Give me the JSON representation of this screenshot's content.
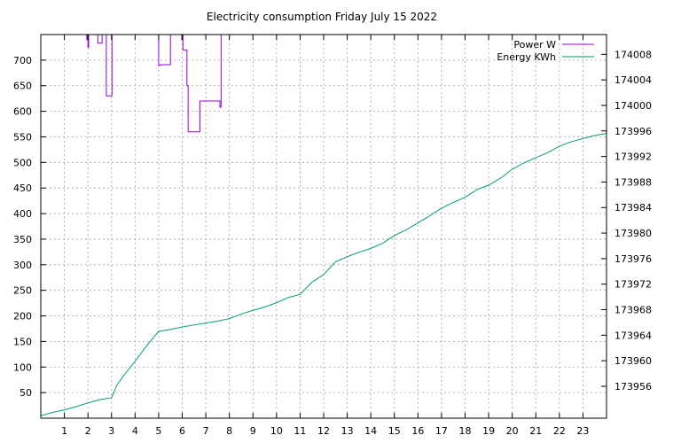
{
  "chart_data": {
    "type": "line",
    "title": "Electricity consumption Friday July 15 2022",
    "xlabel": "",
    "ylabel": "",
    "y2label": "",
    "grid": true,
    "legend_position": "top-right",
    "xlim": [
      0,
      24
    ],
    "ylim": [
      0,
      750
    ],
    "y2lim": [
      173951,
      174011.1
    ],
    "x_ticks": [
      1,
      2,
      3,
      4,
      5,
      6,
      7,
      8,
      9,
      10,
      11,
      12,
      13,
      14,
      15,
      16,
      17,
      18,
      19,
      20,
      21,
      22,
      23
    ],
    "y_ticks": [
      50,
      100,
      150,
      200,
      250,
      300,
      350,
      400,
      450,
      500,
      550,
      600,
      650,
      700
    ],
    "y2_ticks": [
      173956,
      173960,
      173964,
      173968,
      173972,
      173976,
      173980,
      173984,
      173988,
      173992,
      173996,
      174000,
      174004,
      174008
    ],
    "colors": {
      "power": "#9400d3",
      "energy": "#009e73"
    },
    "series": [
      {
        "name": "Power W",
        "axis": "y",
        "points": [
          [
            1.95,
            760
          ],
          [
            1.95,
            740
          ],
          [
            1.96,
            740
          ],
          [
            1.96,
            760
          ],
          [
            2.0,
            760
          ],
          [
            2.0,
            725
          ],
          [
            2.03,
            725
          ],
          [
            2.03,
            760
          ],
          [
            2.42,
            760
          ],
          [
            2.42,
            733
          ],
          [
            2.6,
            733
          ],
          [
            2.6,
            760
          ],
          [
            2.78,
            760
          ],
          [
            2.78,
            630
          ],
          [
            3.02,
            630
          ],
          [
            3.02,
            760
          ],
          [
            5.0,
            760
          ],
          [
            5.0,
            690
          ],
          [
            5.08,
            690
          ],
          [
            5.08,
            691
          ],
          [
            5.5,
            691
          ],
          [
            5.5,
            760
          ],
          [
            5.98,
            760
          ],
          [
            5.98,
            740
          ],
          [
            6.0,
            740
          ],
          [
            6.0,
            760
          ],
          [
            6.03,
            760
          ],
          [
            6.03,
            720
          ],
          [
            6.2,
            720
          ],
          [
            6.2,
            650
          ],
          [
            6.25,
            650
          ],
          [
            6.25,
            560
          ],
          [
            6.75,
            560
          ],
          [
            6.75,
            620
          ],
          [
            7.6,
            620
          ],
          [
            7.6,
            608
          ],
          [
            7.65,
            608
          ],
          [
            7.65,
            760
          ]
        ]
      },
      {
        "name": "Energy KWh",
        "axis": "y2",
        "points": [
          [
            0,
            173951.4
          ],
          [
            0.5,
            173951.9
          ],
          [
            1.0,
            173952.3
          ],
          [
            1.5,
            173952.8
          ],
          [
            2.0,
            173953.4
          ],
          [
            2.5,
            173953.9
          ],
          [
            3.0,
            173954.2
          ],
          [
            3.1,
            173955.0
          ],
          [
            3.2,
            173956.0
          ],
          [
            3.5,
            173957.6
          ],
          [
            4.0,
            173959.9
          ],
          [
            4.5,
            173962.4
          ],
          [
            5.0,
            173964.6
          ],
          [
            5.5,
            173964.9
          ],
          [
            6.0,
            173965.3
          ],
          [
            6.5,
            173965.6
          ],
          [
            7.0,
            173965.9
          ],
          [
            7.5,
            173966.2
          ],
          [
            8.0,
            173966.6
          ],
          [
            8.5,
            173967.3
          ],
          [
            9.0,
            173967.9
          ],
          [
            9.5,
            173968.4
          ],
          [
            10.0,
            173969.1
          ],
          [
            10.5,
            173969.9
          ],
          [
            11.0,
            173970.4
          ],
          [
            11.5,
            173972.3
          ],
          [
            12.0,
            173973.5
          ],
          [
            12.5,
            173975.5
          ],
          [
            13.0,
            173976.3
          ],
          [
            13.5,
            173977.0
          ],
          [
            14.0,
            173977.6
          ],
          [
            14.5,
            173978.4
          ],
          [
            15.0,
            173979.6
          ],
          [
            15.5,
            173980.5
          ],
          [
            16.0,
            173981.6
          ],
          [
            16.5,
            173982.7
          ],
          [
            17.0,
            173983.9
          ],
          [
            17.5,
            173984.8
          ],
          [
            18.0,
            173985.6
          ],
          [
            18.5,
            173986.8
          ],
          [
            19.0,
            173987.5
          ],
          [
            19.5,
            173988.6
          ],
          [
            20.0,
            173990.0
          ],
          [
            20.5,
            173991.0
          ],
          [
            21.0,
            173991.8
          ],
          [
            21.5,
            173992.6
          ],
          [
            22.0,
            173993.6
          ],
          [
            22.5,
            173994.3
          ],
          [
            23.0,
            173994.8
          ],
          [
            23.5,
            173995.3
          ],
          [
            24.0,
            173995.6
          ]
        ]
      }
    ]
  }
}
